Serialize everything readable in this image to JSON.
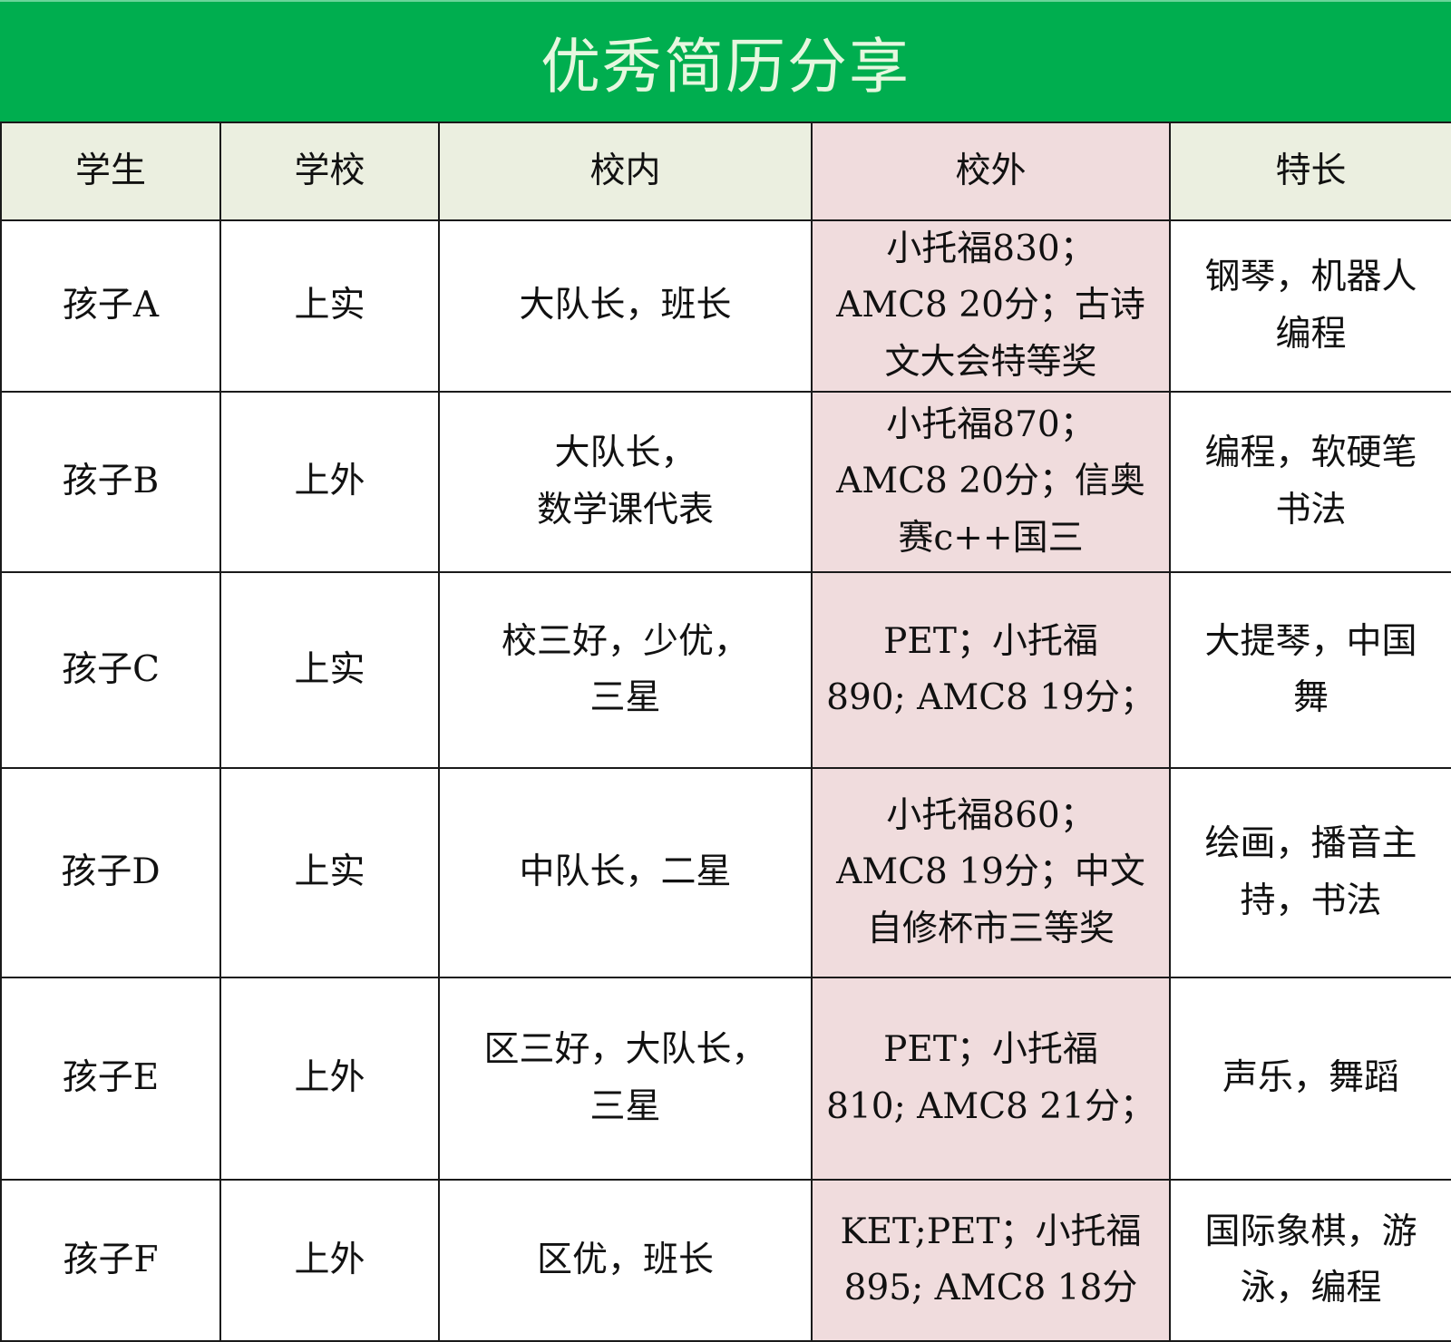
{
  "title": "优秀简历分享",
  "colors": {
    "title_bg": "#00ae4f",
    "header_bg": "#ebefe0",
    "highlight_column_bg": "#f0dcdd"
  },
  "headers": [
    "学生",
    "学校",
    "校内",
    "校外",
    "特长"
  ],
  "rows": [
    {
      "student": "孩子A",
      "school": "上实",
      "in_school": "大队长，班长",
      "out_school": "小托福830；\nAMC8 20分；古诗\n文大会特等奖",
      "talent": "钢琴，机器人\n编程"
    },
    {
      "student": "孩子B",
      "school": "上外",
      "in_school": "大队长，\n数学课代表",
      "out_school": "小托福870；\nAMC8 20分；信奥\n赛c++国三",
      "talent": "编程，软硬笔\n书法"
    },
    {
      "student": "孩子C",
      "school": "上实",
      "in_school": "校三好，少优，\n三星",
      "out_school": "PET；小托福\n890; AMC8 19分；",
      "talent": "大提琴，中国\n舞"
    },
    {
      "student": "孩子D",
      "school": "上实",
      "in_school": "中队长，二星",
      "out_school": "小托福860；\nAMC8 19分；中文\n自修杯市三等奖",
      "talent": "绘画，播音主\n持，书法"
    },
    {
      "student": "孩子E",
      "school": "上外",
      "in_school": "区三好，大队长，\n三星",
      "out_school": "PET；小托福\n810; AMC8 21分；",
      "talent": "声乐，舞蹈"
    },
    {
      "student": "孩子F",
      "school": "上外",
      "in_school": "区优，班长",
      "out_school": "KET;PET；小托福\n895; AMC8 18分",
      "talent": "国际象棋，游\n泳，编程"
    }
  ]
}
